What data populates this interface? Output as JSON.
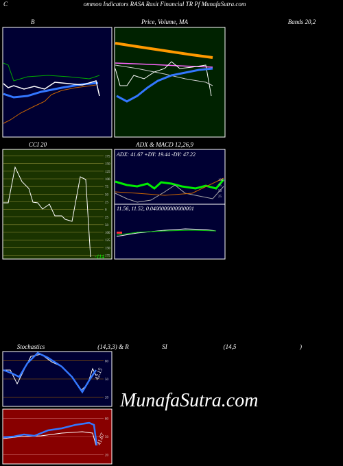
{
  "header": {
    "left": "C",
    "title": "ommon Indicators RASA Rasit Financial TR Pf MunafaSutra.com"
  },
  "row1": {
    "b": "B",
    "price": "Price, Volume, MA",
    "bands": "Bands 20,2"
  },
  "row2": {
    "cci": "CCI 20",
    "adx": "ADX  & MACD 12,26,9"
  },
  "cci": {
    "ticks": [
      "175",
      "150",
      "125",
      "100",
      "75",
      "50",
      "25",
      "0",
      "25",
      "50",
      "100",
      "125",
      "150",
      "175"
    ],
    "last": "-114"
  },
  "adx": {
    "readout": "ADX: 41.67 +DY: 19.44 -DY: 47.22",
    "ticks": [
      "100",
      "75",
      "50",
      "25"
    ]
  },
  "macd": {
    "readout": "11.56,  11.52,  0.0400000000000001"
  },
  "row3": {
    "stoch": "Stochastics",
    "params": "(14,3,3) & R",
    "si": "SI",
    "rsi_params": "(14,5",
    "close": ")"
  },
  "stoch": {
    "ticks": [
      "80",
      "50",
      "20"
    ],
    "last": "42.15"
  },
  "rsi": {
    "ticks": [
      "80",
      "50",
      "20"
    ],
    "last": "41.67"
  },
  "watermark": "MunafaSutra.com"
}
